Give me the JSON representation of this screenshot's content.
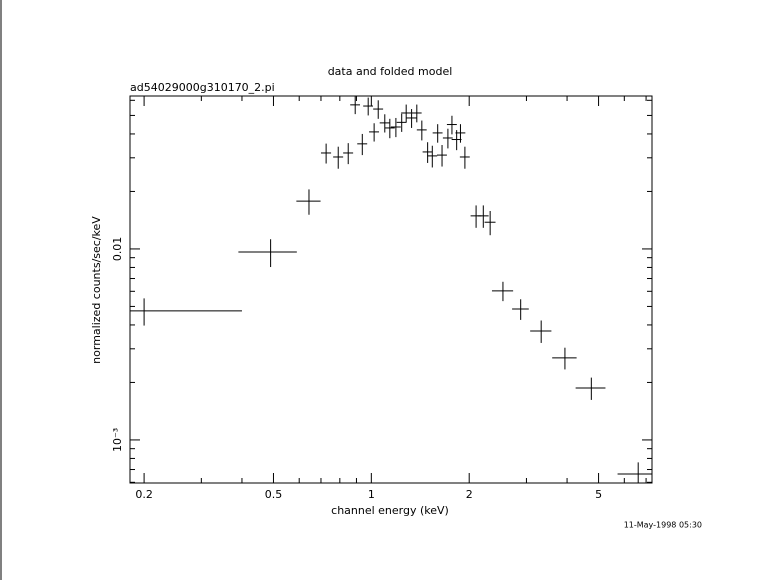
{
  "chart_data": {
    "type": "scatter",
    "title": "data and folded model",
    "subtitle": "ad54029000g310170_2.pi",
    "xlabel": "channel energy (keV)",
    "ylabel": "normalized counts/sec/keV",
    "annotation": "11-May-1998 05:30",
    "xscale": "log",
    "yscale": "log",
    "xlim": [
      0.181,
      7.3
    ],
    "ylim": [
      0.000595,
      0.0632
    ],
    "xticks": [
      0.2,
      0.5,
      1,
      2,
      5
    ],
    "yticks": [
      {
        "value": 0.001,
        "label": "10⁻³"
      },
      0.01
    ],
    "xminorticks": [
      0.3,
      0.4,
      0.6,
      0.7,
      0.8,
      0.9,
      3,
      4,
      6,
      7
    ],
    "yminorticks": [
      0.0006,
      0.0007,
      0.0008,
      0.0009,
      0.002,
      0.003,
      0.004,
      0.005,
      0.006,
      0.007,
      0.008,
      0.009,
      0.02,
      0.03,
      0.04,
      0.05,
      0.06
    ],
    "color": "#000000",
    "series": [
      {
        "x": [
          0.2,
          0.49,
          0.643,
          0.726,
          0.791,
          0.849,
          0.892,
          0.938,
          0.978,
          1.02,
          1.05,
          1.1,
          1.14,
          1.19,
          1.24,
          1.28,
          1.33,
          1.38,
          1.43,
          1.49,
          1.54,
          1.6,
          1.65,
          1.72,
          1.77,
          1.83,
          1.88,
          1.94,
          2.1,
          2.21,
          2.32,
          2.54,
          2.88,
          3.33,
          3.94,
          4.75,
          6.62
        ],
        "xerr": [
          0.2,
          0.1,
          0.055,
          0.026,
          0.028,
          0.03,
          0.031,
          0.033,
          0.034,
          0.036,
          0.037,
          0.039,
          0.04,
          0.042,
          0.043,
          0.045,
          0.047,
          0.048,
          0.05,
          0.052,
          0.054,
          0.056,
          0.058,
          0.06,
          0.062,
          0.064,
          0.066,
          0.068,
          0.08,
          0.085,
          0.09,
          0.19,
          0.17,
          0.25,
          0.34,
          0.5,
          0.9
        ],
        "values": [
          0.00474,
          0.00964,
          0.0178,
          0.0318,
          0.0303,
          0.0318,
          0.0568,
          0.0355,
          0.056,
          0.041,
          0.054,
          0.0457,
          0.043,
          0.0435,
          0.046,
          0.0515,
          0.0485,
          0.0515,
          0.042,
          0.0322,
          0.0307,
          0.0405,
          0.031,
          0.0381,
          0.0448,
          0.0374,
          0.0405,
          0.0303,
          0.0149,
          0.0149,
          0.0138,
          0.00603,
          0.00485,
          0.00372,
          0.00269,
          0.00187,
          0.000663
        ],
        "yerr": [
          0.00077,
          0.0016,
          0.0027,
          0.0038,
          0.004,
          0.004,
          0.006,
          0.0045,
          0.006,
          0.0045,
          0.006,
          0.005,
          0.005,
          0.005,
          0.005,
          0.0055,
          0.0055,
          0.0055,
          0.005,
          0.004,
          0.004,
          0.0045,
          0.004,
          0.0045,
          0.005,
          0.0045,
          0.0045,
          0.004,
          0.002,
          0.002,
          0.002,
          0.0007,
          0.0006,
          0.0005,
          0.00035,
          0.00025,
          0.0001
        ]
      }
    ]
  }
}
